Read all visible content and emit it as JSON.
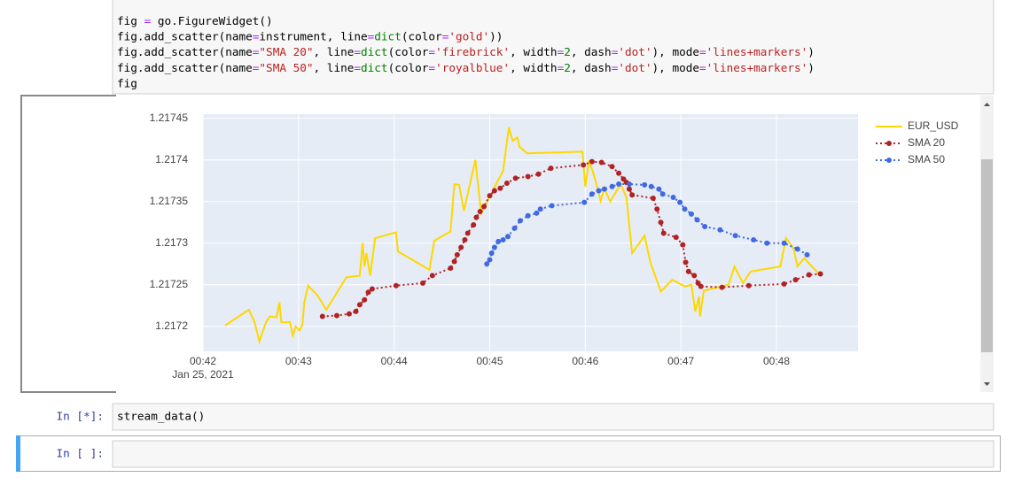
{
  "code_cell": {
    "lines": [
      [
        "fig ",
        "=",
        " go.FigureWidget()"
      ],
      [
        "fig.add_scatter(name",
        "=",
        "instrument, line",
        "=",
        "dict",
        "(color",
        "=",
        "'gold'",
        "))"
      ],
      [
        "fig.add_scatter(name",
        "=",
        "\"SMA 20\"",
        ", line",
        "=",
        "dict",
        "(color",
        "=",
        "'firebrick'",
        ", width",
        "=",
        "2",
        ", dash",
        "=",
        "'dot'",
        "), mode",
        "=",
        "'lines+markers'",
        ")"
      ],
      [
        "fig.add_scatter(name",
        "=",
        "\"SMA 50\"",
        ", line",
        "=",
        "dict",
        "(color",
        "=",
        "'royalblue'",
        ", width",
        "=",
        "2",
        ", dash",
        "=",
        "'dot'",
        "), mode",
        "=",
        "'lines+markers'",
        ")"
      ],
      [
        "fig"
      ]
    ]
  },
  "cells": [
    {
      "prompt": "In [*]:",
      "code": "stream_data()"
    },
    {
      "prompt": "In [ ]:"
    }
  ],
  "chart_data": {
    "type": "line",
    "legend": "right",
    "grid": true,
    "xlim": [
      42,
      48.853
    ],
    "xticks": [
      {
        "value": 42,
        "label": "00:42"
      },
      {
        "value": 43,
        "label": "00:43"
      },
      {
        "value": 44,
        "label": "00:44"
      },
      {
        "value": 45,
        "label": "00:45"
      },
      {
        "value": 46,
        "label": "00:46"
      },
      {
        "value": 47,
        "label": "00:47"
      },
      {
        "value": 48,
        "label": "00:48"
      }
    ],
    "x_date_label": "Jan 25, 2021",
    "ylim": [
      1.21717,
      1.217455
    ],
    "yticks": [
      1.2172,
      1.21725,
      1.2173,
      1.21735,
      1.2174,
      1.21745
    ],
    "series": [
      {
        "name": "EUR_USD",
        "color": "#ffd700",
        "mode": "lines",
        "dash": "solid",
        "x": [
          42.23,
          42.48,
          42.54,
          42.59,
          42.66,
          42.7,
          42.77,
          42.8,
          42.82,
          42.91,
          42.94,
          42.97,
          43.01,
          43.04,
          43.06,
          43.1,
          43.2,
          43.29,
          43.5,
          43.64,
          43.67,
          43.69,
          43.71,
          43.75,
          43.8,
          44.02,
          44.04,
          44.37,
          44.42,
          44.59,
          44.63,
          44.68,
          44.73,
          44.85,
          44.91,
          45.04,
          45.14,
          45.2,
          45.24,
          45.29,
          45.31,
          45.39,
          45.97,
          46.0,
          46.04,
          46.1,
          46.16,
          46.2,
          46.26,
          46.37,
          46.43,
          46.49,
          46.62,
          46.68,
          46.79,
          46.91,
          47.04,
          47.11,
          47.15,
          47.19,
          47.2,
          47.24,
          47.5,
          47.56,
          47.65,
          47.73,
          48.04,
          48.1,
          48.18,
          48.22,
          48.29,
          48.46
        ],
        "values": [
          1.217201,
          1.21722,
          1.217205,
          1.217182,
          1.217205,
          1.217212,
          1.217211,
          1.217229,
          1.217205,
          1.217205,
          1.217189,
          1.2172,
          1.217195,
          1.217202,
          1.217229,
          1.217249,
          1.217237,
          1.21722,
          1.217259,
          1.217261,
          1.2173,
          1.217272,
          1.217288,
          1.217261,
          1.217306,
          1.217313,
          1.21729,
          1.217268,
          1.217303,
          1.217314,
          1.217371,
          1.21737,
          1.217339,
          1.2174,
          1.217336,
          1.217365,
          1.217387,
          1.217439,
          1.217423,
          1.217427,
          1.217416,
          1.217408,
          1.21741,
          1.217368,
          1.2174,
          1.217378,
          1.217351,
          1.217366,
          1.21735,
          1.217371,
          1.217355,
          1.217288,
          1.217309,
          1.217277,
          1.217242,
          1.217256,
          1.217248,
          1.21725,
          1.217218,
          1.217236,
          1.217212,
          1.217243,
          1.21725,
          1.217272,
          1.217252,
          1.217266,
          1.217272,
          1.217306,
          1.217293,
          1.217272,
          1.217282,
          1.217261
        ]
      },
      {
        "name": "SMA 20",
        "color": "#b22222",
        "mode": "lines+markers",
        "dash": "dot",
        "x": [
          43.25,
          43.4,
          43.53,
          43.6,
          43.64,
          43.69,
          43.73,
          43.77,
          44.02,
          44.3,
          44.4,
          44.59,
          44.63,
          44.66,
          44.7,
          44.74,
          44.77,
          44.83,
          44.86,
          44.9,
          44.94,
          45.0,
          45.05,
          45.11,
          45.18,
          45.27,
          45.4,
          45.51,
          45.64,
          45.98,
          46.07,
          46.17,
          46.28,
          46.35,
          46.4,
          46.43,
          46.46,
          46.49,
          46.71,
          46.75,
          46.79,
          46.82,
          46.95,
          47.02,
          47.05,
          47.08,
          47.14,
          47.18,
          47.21,
          47.43,
          47.71,
          48.08,
          48.2,
          48.34,
          48.46
        ],
        "values": [
          1.217212,
          1.217213,
          1.217215,
          1.217218,
          1.217226,
          1.217232,
          1.217241,
          1.217245,
          1.217249,
          1.217252,
          1.217261,
          1.21727,
          1.217278,
          1.217286,
          1.217295,
          1.217304,
          1.217312,
          1.217322,
          1.217331,
          1.217338,
          1.217344,
          1.217357,
          1.217363,
          1.217366,
          1.217372,
          1.217378,
          1.21738,
          1.217383,
          1.21739,
          1.217394,
          1.217398,
          1.217397,
          1.217392,
          1.217384,
          1.217377,
          1.217373,
          1.217365,
          1.217358,
          1.217354,
          1.217341,
          1.217325,
          1.217312,
          1.217307,
          1.217298,
          1.217277,
          1.217266,
          1.217261,
          1.217252,
          1.217248,
          1.217247,
          1.217249,
          1.217251,
          1.217256,
          1.217262,
          1.217263
        ]
      },
      {
        "name": "SMA 50",
        "color": "#4169e1",
        "mode": "lines+markers",
        "dash": "dot",
        "x": [
          44.97,
          45.0,
          45.02,
          45.05,
          45.09,
          45.14,
          45.19,
          45.26,
          45.32,
          45.4,
          45.49,
          45.53,
          45.65,
          45.99,
          46.07,
          46.14,
          46.2,
          46.28,
          46.35,
          46.46,
          46.62,
          46.69,
          46.77,
          46.81,
          46.92,
          46.99,
          47.04,
          47.11,
          47.17,
          47.25,
          47.41,
          47.57,
          47.76,
          47.9,
          48.08,
          48.22,
          48.32
        ],
        "values": [
          1.217275,
          1.21728,
          1.217288,
          1.217295,
          1.217302,
          1.217304,
          1.217308,
          1.217318,
          1.217327,
          1.217333,
          1.217336,
          1.217341,
          1.217345,
          1.217349,
          1.217359,
          1.217363,
          1.217365,
          1.217368,
          1.217371,
          1.217371,
          1.21737,
          1.217368,
          1.217365,
          1.217359,
          1.217355,
          1.217349,
          1.217341,
          1.217335,
          1.217328,
          1.21732,
          1.217316,
          1.217309,
          1.217304,
          1.2173,
          1.2173,
          1.217293,
          1.217286
        ]
      }
    ]
  }
}
